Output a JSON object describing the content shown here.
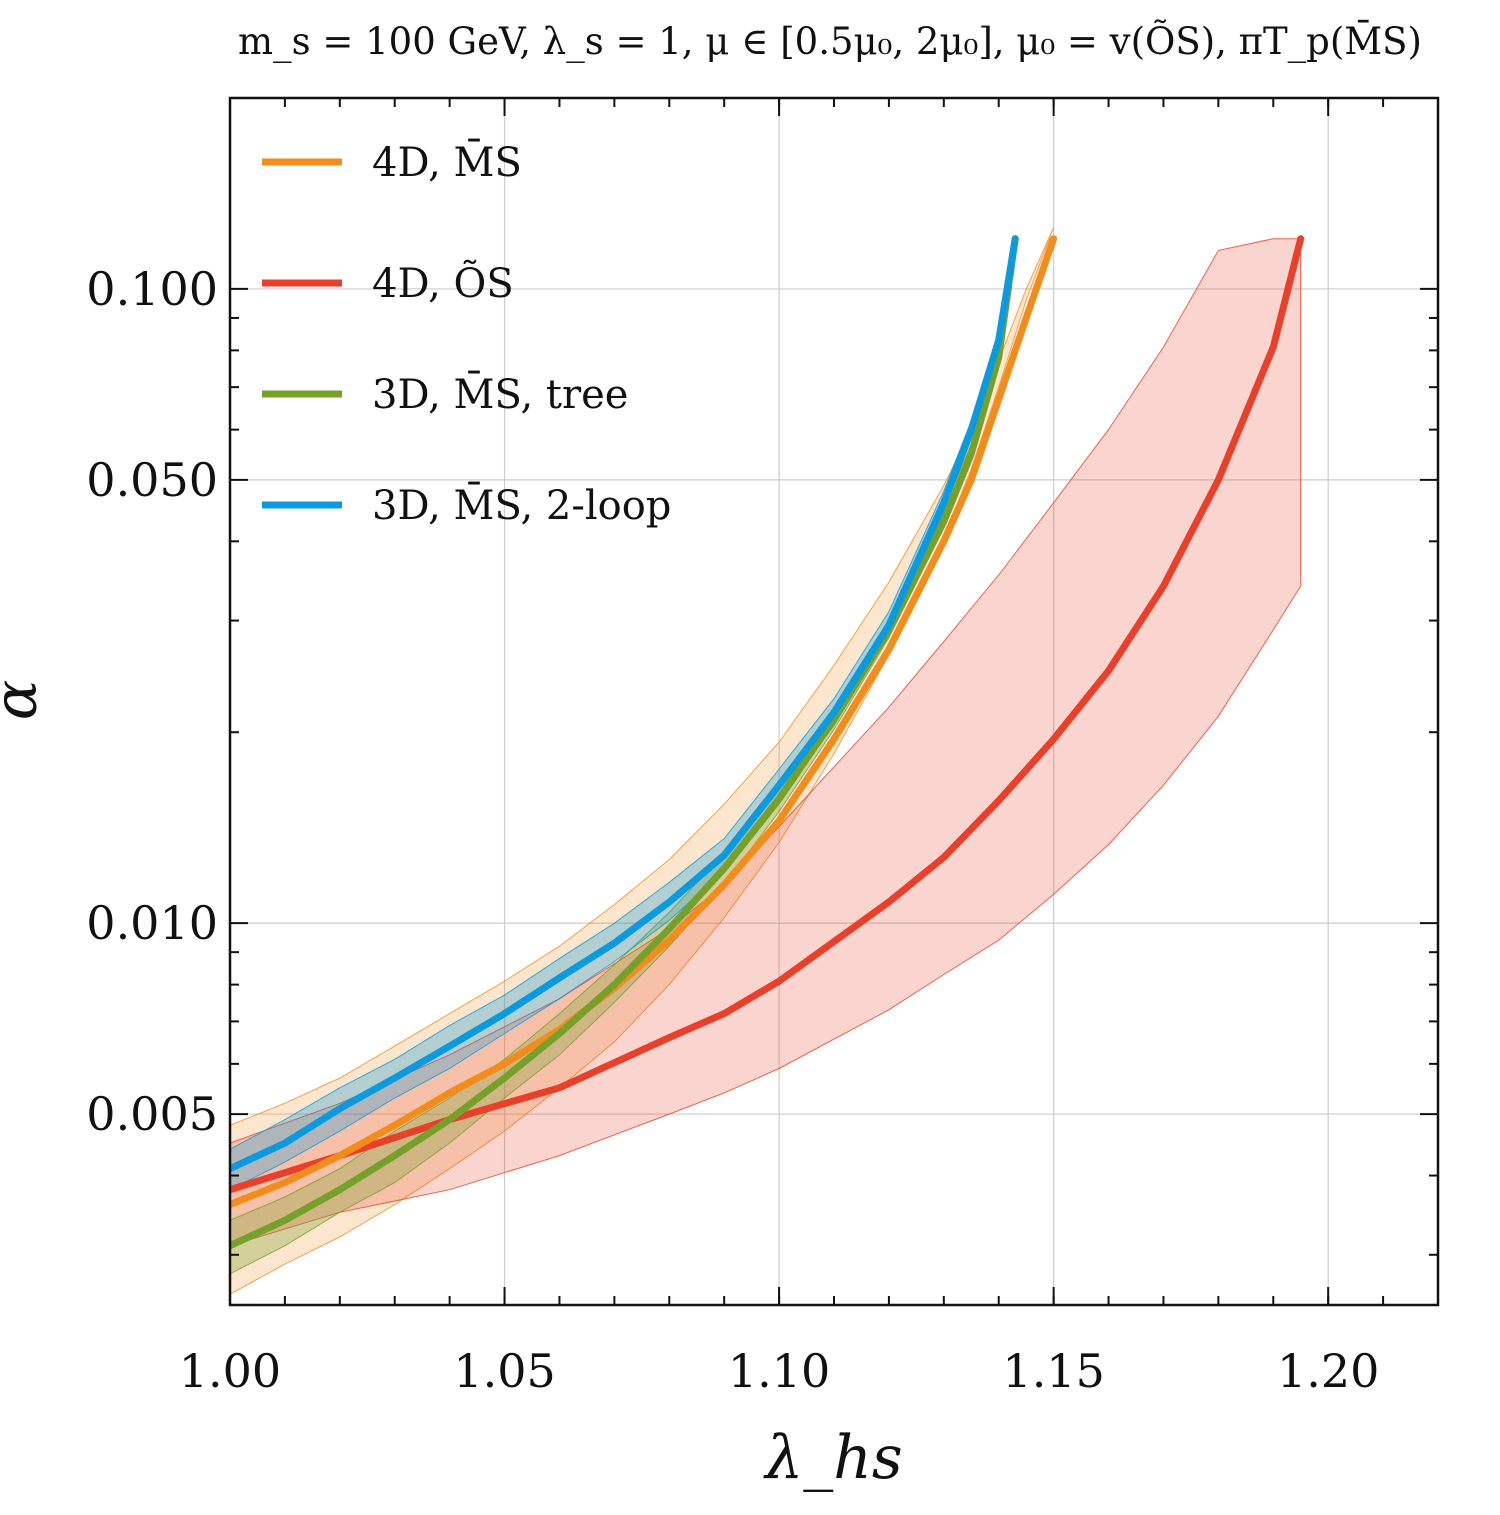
{
  "chart_data": {
    "type": "line",
    "title": "m_s = 100 GeV, λ_s = 1, μ ∈ [0.5μ₀, 2μ₀], μ₀ = v(ÕS), πT_p(M̄S)",
    "xlabel": "λ_hs",
    "ylabel": "α",
    "xlim": [
      1.0,
      1.22
    ],
    "ylim": [
      0.0025,
      0.2
    ],
    "yscale": "log",
    "x_ticks": [
      "1.00",
      "1.05",
      "1.10",
      "1.15",
      "1.20"
    ],
    "x_tick_values": [
      1.0,
      1.05,
      1.1,
      1.15,
      1.2
    ],
    "y_ticks": [
      "0.005",
      "0.010",
      "0.050",
      "0.100"
    ],
    "y_tick_values": [
      0.005,
      0.01,
      0.05,
      0.1
    ],
    "grid": true,
    "legend_position": "top-left",
    "series": [
      {
        "name": "4D, M̄S",
        "color": "#f28c1c",
        "x": [
          1.0,
          1.01,
          1.02,
          1.03,
          1.04,
          1.05,
          1.06,
          1.07,
          1.08,
          1.09,
          1.1,
          1.11,
          1.12,
          1.13,
          1.135,
          1.14,
          1.145,
          1.15
        ],
        "y": [
          0.0036,
          0.0039,
          0.0043,
          0.0048,
          0.0054,
          0.006,
          0.0068,
          0.0079,
          0.0094,
          0.0115,
          0.0145,
          0.0195,
          0.027,
          0.04,
          0.05,
          0.067,
          0.09,
          0.12
        ],
        "band_lower": [
          0.0026,
          0.0029,
          0.0032,
          0.0036,
          0.0041,
          0.0047,
          0.0055,
          0.0065,
          0.008,
          0.0102,
          0.0134,
          0.0185,
          0.0265,
          0.0405,
          0.052,
          0.07,
          0.096,
          0.125
        ],
        "band_upper": [
          0.0048,
          0.0052,
          0.0057,
          0.0064,
          0.0072,
          0.0081,
          0.0092,
          0.0107,
          0.0126,
          0.0154,
          0.0193,
          0.0255,
          0.0345,
          0.049,
          0.06,
          0.077,
          0.1,
          0.125
        ]
      },
      {
        "name": "4D, ÕS",
        "color": "#e8402a",
        "x": [
          1.0,
          1.02,
          1.04,
          1.06,
          1.08,
          1.09,
          1.1,
          1.12,
          1.13,
          1.14,
          1.15,
          1.16,
          1.17,
          1.18,
          1.19,
          1.195
        ],
        "y": [
          0.0038,
          0.0043,
          0.0049,
          0.0055,
          0.0066,
          0.0072,
          0.0081,
          0.0108,
          0.0127,
          0.0156,
          0.0195,
          0.025,
          0.034,
          0.05,
          0.081,
          0.12
        ],
        "band_lower": [
          0.0031,
          0.0035,
          0.0038,
          0.0043,
          0.005,
          0.0054,
          0.0059,
          0.0073,
          0.0083,
          0.0094,
          0.0111,
          0.0133,
          0.0165,
          0.0212,
          0.029,
          0.034
        ],
        "band_upper": [
          0.0045,
          0.0052,
          0.0062,
          0.0076,
          0.0098,
          0.0115,
          0.0142,
          0.0219,
          0.0278,
          0.0354,
          0.046,
          0.06,
          0.081,
          0.115,
          0.12,
          0.12
        ]
      },
      {
        "name": "3D, M̄S, tree",
        "color": "#77a02a",
        "x": [
          1.0,
          1.01,
          1.02,
          1.03,
          1.04,
          1.05,
          1.06,
          1.07,
          1.08,
          1.09,
          1.1,
          1.11,
          1.12,
          1.13,
          1.135,
          1.14,
          1.143
        ],
        "y": [
          0.0031,
          0.0034,
          0.0038,
          0.0043,
          0.0049,
          0.0057,
          0.0067,
          0.008,
          0.0098,
          0.0122,
          0.0157,
          0.021,
          0.029,
          0.043,
          0.055,
          0.078,
          0.12
        ],
        "band_lower": [
          0.0028,
          0.0031,
          0.0035,
          0.0039,
          0.0045,
          0.0053,
          0.0062,
          0.0075,
          0.0092,
          0.0115,
          0.015,
          0.0202,
          0.0282,
          0.042,
          0.054,
          0.077,
          0.12
        ],
        "band_upper": [
          0.0034,
          0.0037,
          0.0041,
          0.0047,
          0.0053,
          0.0061,
          0.0072,
          0.0086,
          0.0104,
          0.0129,
          0.0165,
          0.0219,
          0.03,
          0.045,
          0.057,
          0.082,
          0.12
        ]
      },
      {
        "name": "3D, M̄S, 2-loop",
        "color": "#0b9ade",
        "x": [
          1.0,
          1.01,
          1.02,
          1.03,
          1.04,
          1.05,
          1.06,
          1.07,
          1.08,
          1.09,
          1.1,
          1.11,
          1.12,
          1.13,
          1.135,
          1.14,
          1.143
        ],
        "y": [
          0.0041,
          0.0045,
          0.0051,
          0.0057,
          0.0064,
          0.0072,
          0.0082,
          0.0093,
          0.0108,
          0.0128,
          0.0165,
          0.0215,
          0.0295,
          0.046,
          0.06,
          0.083,
          0.12
        ],
        "band_lower": [
          0.0038,
          0.0042,
          0.0047,
          0.0053,
          0.0059,
          0.0067,
          0.0076,
          0.0087,
          0.0101,
          0.0121,
          0.0156,
          0.0205,
          0.0284,
          0.0445,
          0.058,
          0.081,
          0.12
        ],
        "band_upper": [
          0.0044,
          0.0049,
          0.0055,
          0.0061,
          0.0069,
          0.0077,
          0.0088,
          0.01,
          0.0116,
          0.0136,
          0.0175,
          0.0226,
          0.031,
          0.048,
          0.062,
          0.086,
          0.12
        ]
      }
    ]
  }
}
